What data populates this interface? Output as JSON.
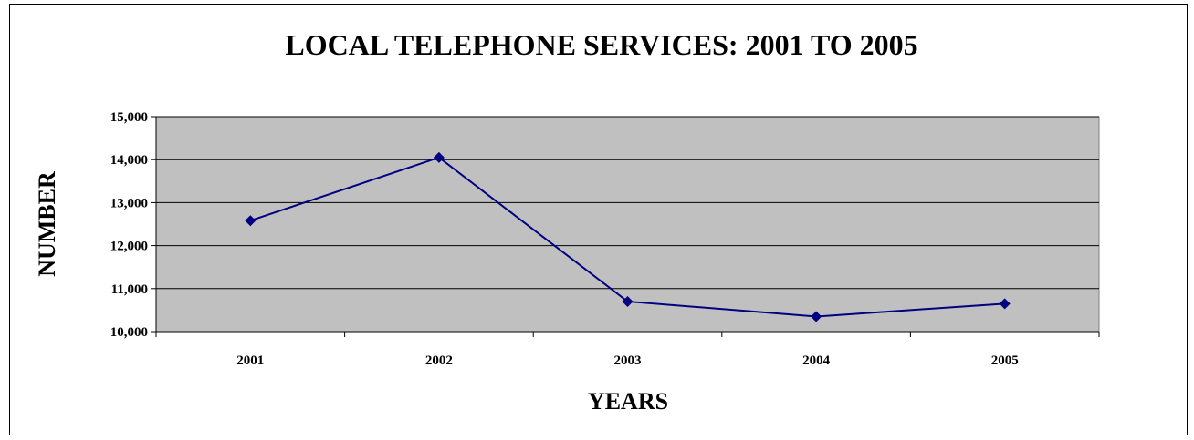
{
  "chart_data": {
    "type": "line",
    "title": "LOCAL TELEPHONE SERVICES:  2001 TO 2005",
    "xlabel": "YEARS",
    "ylabel": "NUMBER",
    "categories": [
      "2001",
      "2002",
      "2003",
      "2004",
      "2005"
    ],
    "series": [
      {
        "values": [
          12580,
          14050,
          10700,
          10350,
          10650
        ]
      }
    ],
    "ylim": [
      10000,
      15000
    ],
    "yticks": [
      10000,
      11000,
      12000,
      13000,
      14000,
      15000
    ],
    "ytick_labels": [
      "10,000",
      "11,000",
      "12,000",
      "13,000",
      "14,000",
      "15,000"
    ],
    "grid": true,
    "legend": "none",
    "colors": {
      "plot_background": "#c0c0c0",
      "line": "#000080",
      "marker": "#000080",
      "gridline": "#000000"
    }
  }
}
